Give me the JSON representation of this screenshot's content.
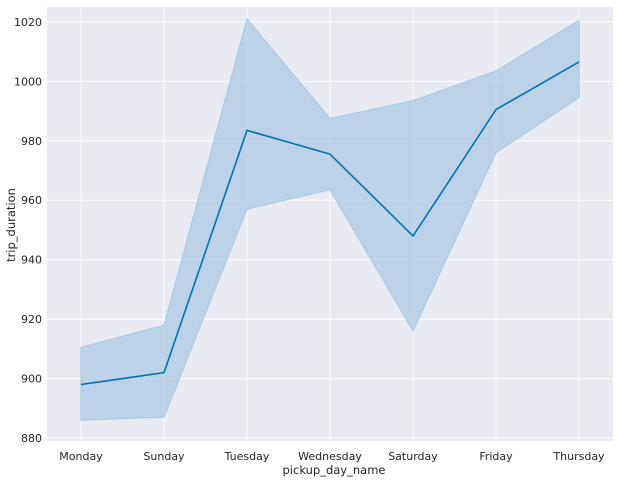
{
  "chart_data": {
    "type": "line",
    "title": "",
    "xlabel": "pickup_day_name",
    "ylabel": "trip_duration",
    "categories": [
      "Monday",
      "Sunday",
      "Tuesday",
      "Wednesday",
      "Saturday",
      "Friday",
      "Thursday"
    ],
    "series": [
      {
        "values": [
          898,
          902,
          983.5,
          975.5,
          948,
          990.5,
          1006.5
        ],
        "ci_lower": [
          886,
          887,
          957,
          963.5,
          916,
          976,
          994.5
        ],
        "ci_upper": [
          910.5,
          918,
          1021,
          987.5,
          993.5,
          1003.5,
          1020.5
        ]
      }
    ],
    "ylim": [
      879,
      1025
    ],
    "yticks": [
      880,
      900,
      920,
      940,
      960,
      980,
      1000,
      1020
    ],
    "grid": true,
    "legend": "none",
    "colors": {
      "plot_background": "#eaeaf2",
      "grid": "#ffffff",
      "line": "#0072b2",
      "band": "#a6c8e6"
    }
  }
}
